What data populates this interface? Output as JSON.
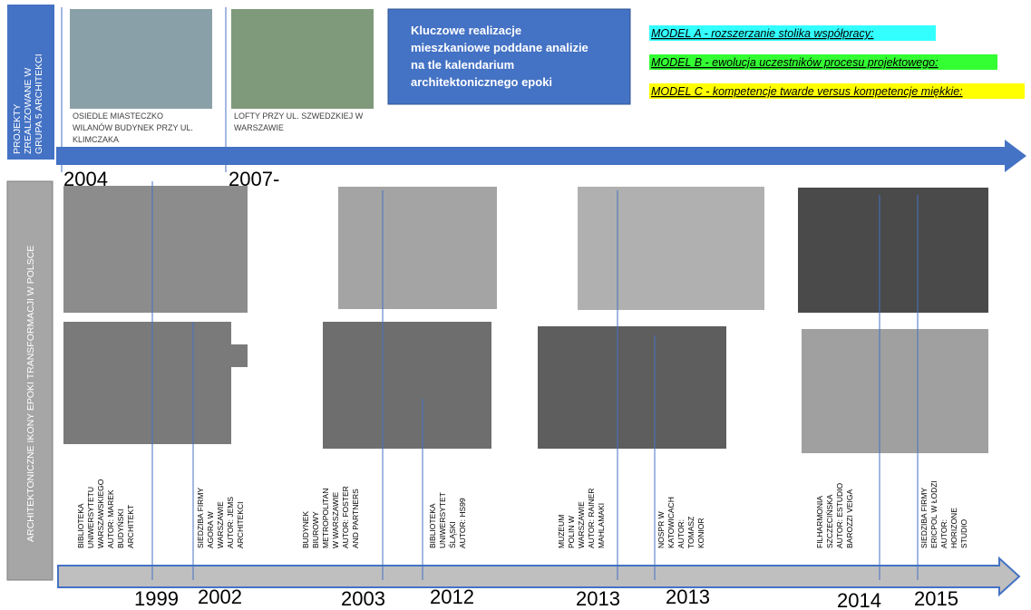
{
  "sidebar_top": [
    "PROJEKTY",
    "ZREALIZOWANE W",
    "GRUPA 5 ARCHITEKCI"
  ],
  "sidebar_bottom": "ARCHITEKTONICZNE IKONY EPOKI TRANSFORMACJI W POLSCE",
  "projects": [
    {
      "caption": [
        "OSIEDLE MIASTECZKO",
        "WILANÓW BUDYNEK PRZY UL.",
        "KLIMCZAKA"
      ],
      "year": "2004"
    },
    {
      "caption": [
        "LOFTY PRZY UL. SZWEDZKIEJ W",
        "WARSZAWIE"
      ],
      "year": "2007-"
    }
  ],
  "info_box": [
    "Kluczowe realizacje",
    "mieszkaniowe poddane analizie",
    "na tle kalendarium",
    "architektonicznego epoki"
  ],
  "models": [
    {
      "label": "MODEL A - rozszerzanie stolika współpracy:",
      "color": "#33ffff"
    },
    {
      "label": "MODEL B - ewolucja uczestników procesu projektowego:",
      "color": "#33ff33"
    },
    {
      "label": "MODEL C - kompetencje twarde versus kompetencje miękkie:",
      "color": "#ffff00"
    }
  ],
  "timeline": [
    {
      "year": "1999",
      "caption": [
        "BIBLIOTEKA",
        "UNIWERSYTETU",
        "WARSZAWSKIEGO",
        "AUTOR: MAREK",
        "BUDYŃSKI",
        "ARCHITEKT"
      ]
    },
    {
      "year": "2002",
      "caption": [
        "SIEDZIBA FIRMY",
        "AGORA W",
        "WARSZAWIE",
        "AUTOR: JEMS",
        "ARCHITEKCI"
      ]
    },
    {
      "year": "2003",
      "caption": [
        "BUDYNEK",
        "BIUROWY",
        "METROPOLITAN",
        "W WARSZAWIE",
        "AUTOR: FOSTER",
        "AND PARTNERS"
      ]
    },
    {
      "year": "2012",
      "caption": [
        "BIBLIOTEKA",
        "UNIWERSYTET",
        "ŚLĄSKI",
        "AUTOR: HS99"
      ]
    },
    {
      "year": "2013",
      "caption": [
        "MUZEUM",
        "POLIN W",
        "WARSZAWIE",
        "AUTOR: RAINER",
        "MAHLAMAKI"
      ]
    },
    {
      "year": "2013",
      "caption": [
        "NOSPR W",
        "KATOWICACH",
        "AUTOR:",
        "TOMASZ",
        "KONIOR"
      ]
    },
    {
      "year": "2014",
      "caption": [
        "FILHARMONIA",
        "SZCZECIŃSKA",
        "AUTOR: ESTUDIO",
        "BAROZZI VEIGA"
      ]
    },
    {
      "year": "2015",
      "caption": [
        "SIEDZIBA FIRMY",
        "ERICPOL W ŁODZI",
        "AUTOR:",
        "HORIZONE",
        "STUDIO"
      ]
    }
  ]
}
